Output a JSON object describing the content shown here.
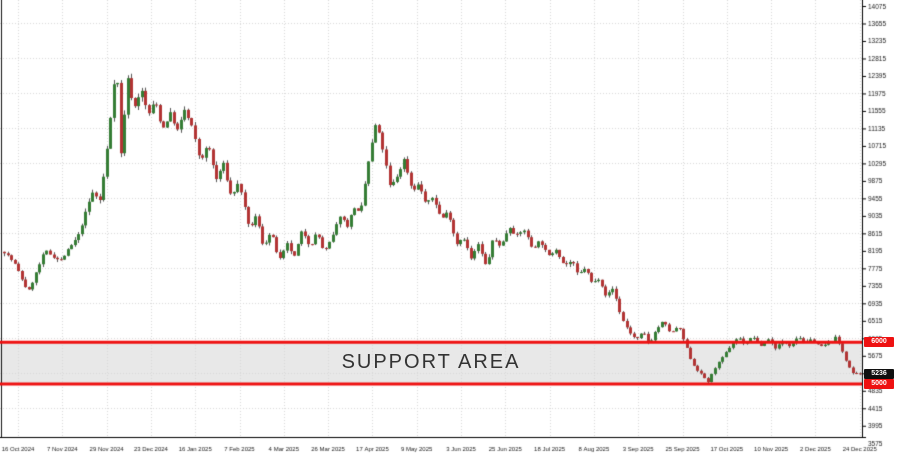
{
  "window": {
    "background": "#ffffff"
  },
  "support_area": {
    "label": "SUPPORT AREA",
    "top_price_tag": "6000",
    "bottom_price_tag": "5000",
    "band_color": "#e8e8e8",
    "line_color": "#ee1111"
  },
  "current_price_tag": {
    "value": "5236",
    "bg": "#101010",
    "text_color": "#ffffff"
  },
  "chart_data": {
    "type": "candlestick",
    "title": "",
    "xlabel": "",
    "ylabel": "",
    "grid": true,
    "legend": "none",
    "ylim": [
      3575,
      14075
    ],
    "y_axis": {
      "labels": [
        14075,
        13655,
        13235,
        12815,
        12395,
        11975,
        11555,
        11135,
        10715,
        10295,
        9875,
        9455,
        9035,
        8615,
        8195,
        7775,
        7355,
        6935,
        6515,
        6095,
        5675,
        5255,
        4835,
        4415,
        3995,
        3575
      ],
      "step": 420
    },
    "x_axis": {
      "labels": [
        "16 Oct 2024",
        "7 Nov 2024",
        "29 Nov 2024",
        "23 Dec 2024",
        "16 Jan 2025",
        "7 Feb 2025",
        "4 Mar 2025",
        "26 Mar 2025",
        "17 Apr 2025",
        "9 May 2025",
        "3 Jun 2025",
        "25 Jun 2025",
        "18 Jul 2025",
        "8 Aug 2025",
        "3 Sep 2025",
        "25 Sep 2025",
        "17 Oct 2025",
        "10 Nov 2025",
        "2 Dec 2025",
        "24 Dec 2025"
      ]
    },
    "support_band": {
      "top": 6000,
      "bottom": 5000
    },
    "bid": 5236,
    "n_bars": 243,
    "price_path": [
      [
        3,
        8200
      ],
      [
        14,
        7900
      ],
      [
        28,
        7200
      ],
      [
        45,
        8200
      ],
      [
        60,
        7950
      ],
      [
        78,
        8550
      ],
      [
        92,
        9600
      ],
      [
        100,
        9400
      ],
      [
        108,
        10900
      ],
      [
        113,
        12100
      ],
      [
        116,
        12780
      ],
      [
        121,
        10400
      ],
      [
        127,
        12400
      ],
      [
        134,
        11600
      ],
      [
        141,
        12100
      ],
      [
        148,
        11450
      ],
      [
        155,
        11800
      ],
      [
        162,
        11100
      ],
      [
        170,
        11500
      ],
      [
        178,
        11050
      ],
      [
        184,
        11600
      ],
      [
        192,
        11150
      ],
      [
        200,
        10350
      ],
      [
        208,
        10750
      ],
      [
        216,
        9900
      ],
      [
        223,
        10300
      ],
      [
        231,
        9500
      ],
      [
        239,
        9850
      ],
      [
        249,
        8700
      ],
      [
        256,
        9050
      ],
      [
        263,
        8300
      ],
      [
        271,
        8650
      ],
      [
        279,
        7950
      ],
      [
        287,
        8350
      ],
      [
        294,
        8050
      ],
      [
        302,
        8700
      ],
      [
        310,
        8300
      ],
      [
        317,
        8650
      ],
      [
        324,
        8150
      ],
      [
        332,
        8500
      ],
      [
        340,
        9050
      ],
      [
        347,
        8800
      ],
      [
        354,
        9250
      ],
      [
        360,
        9050
      ],
      [
        368,
        10300
      ],
      [
        376,
        11280
      ],
      [
        383,
        10600
      ],
      [
        390,
        9700
      ],
      [
        397,
        10000
      ],
      [
        404,
        10400
      ],
      [
        412,
        9650
      ],
      [
        419,
        9800
      ],
      [
        426,
        9300
      ],
      [
        433,
        9500
      ],
      [
        441,
        8950
      ],
      [
        448,
        9150
      ],
      [
        456,
        8350
      ],
      [
        463,
        8550
      ],
      [
        471,
        8000
      ],
      [
        478,
        8350
      ],
      [
        486,
        7800
      ],
      [
        493,
        8500
      ],
      [
        501,
        8300
      ],
      [
        509,
        8800
      ],
      [
        516,
        8550
      ],
      [
        524,
        8700
      ],
      [
        532,
        8250
      ],
      [
        540,
        8450
      ],
      [
        548,
        8050
      ],
      [
        556,
        8250
      ],
      [
        564,
        7850
      ],
      [
        572,
        7950
      ],
      [
        578,
        7600
      ],
      [
        585,
        7800
      ],
      [
        592,
        7400
      ],
      [
        599,
        7550
      ],
      [
        606,
        7100
      ],
      [
        613,
        7300
      ],
      [
        621,
        6600
      ],
      [
        629,
        6250
      ],
      [
        636,
        6050
      ],
      [
        643,
        6250
      ],
      [
        649,
        5950
      ],
      [
        656,
        6300
      ],
      [
        663,
        6500
      ],
      [
        671,
        6200
      ],
      [
        678,
        6400
      ],
      [
        685,
        5950
      ],
      [
        692,
        5500
      ],
      [
        700,
        5250
      ],
      [
        708,
        5050
      ],
      [
        715,
        5400
      ],
      [
        723,
        5650
      ],
      [
        731,
        5950
      ],
      [
        738,
        6120
      ],
      [
        745,
        5950
      ],
      [
        753,
        6150
      ],
      [
        760,
        5900
      ],
      [
        768,
        6080
      ],
      [
        775,
        5870
      ],
      [
        783,
        6020
      ],
      [
        790,
        5920
      ],
      [
        798,
        6150
      ],
      [
        805,
        5980
      ],
      [
        813,
        6080
      ],
      [
        820,
        5880
      ],
      [
        828,
        5980
      ],
      [
        836,
        6120
      ],
      [
        842,
        5800
      ],
      [
        848,
        5450
      ],
      [
        853,
        5236
      ]
    ],
    "colors": {
      "up": "#357d35",
      "down": "#b23434",
      "wick": "#565656",
      "grid": "#d9d9d9",
      "axis": "#000000",
      "label_text": "#222222"
    }
  }
}
